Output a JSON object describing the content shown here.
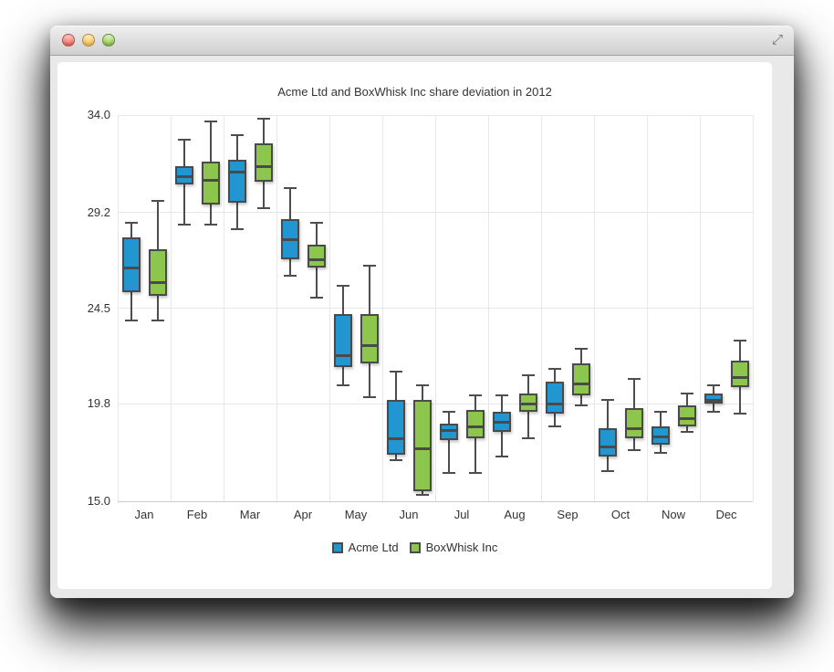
{
  "window": {
    "controls": [
      {
        "name": "close",
        "color": "#ed675e"
      },
      {
        "name": "minimize",
        "color": "#f5bf4f"
      },
      {
        "name": "zoom",
        "color": "#87c348"
      }
    ],
    "resize_icon_glyph": "⤢"
  },
  "chart_data": {
    "type": "boxplot",
    "title": "Acme Ltd and BoxWhisk Inc share deviation in 2012",
    "categories": [
      "Jan",
      "Feb",
      "Mar",
      "Apr",
      "May",
      "Jun",
      "Jul",
      "Aug",
      "Sep",
      "Oct",
      "Now",
      "Dec"
    ],
    "y_ticks": [
      "34.0",
      "29.2",
      "24.5",
      "19.8",
      "15.0"
    ],
    "ylim": [
      15.0,
      34.0
    ],
    "grid": true,
    "legend_position": "bottom",
    "point_format": [
      "low",
      "q1",
      "median",
      "q3",
      "high"
    ],
    "colors": {
      "stroke": "#4a4a4a",
      "gridline": "#e7e7e7",
      "axis_line": "#cccccc",
      "text": "#333333"
    },
    "series": [
      {
        "name": "Acme Ltd",
        "color": "#2196d0",
        "data": [
          [
            23.9,
            25.3,
            26.5,
            28.0,
            28.7
          ],
          [
            28.6,
            30.6,
            31.0,
            31.5,
            32.8
          ],
          [
            28.4,
            29.7,
            31.2,
            31.8,
            33.0
          ],
          [
            26.1,
            26.9,
            27.9,
            28.9,
            30.4
          ],
          [
            20.7,
            21.6,
            22.2,
            24.2,
            25.6
          ],
          [
            17.0,
            17.3,
            18.1,
            20.0,
            21.4
          ],
          [
            16.4,
            18.0,
            18.5,
            18.8,
            19.4
          ],
          [
            17.2,
            18.4,
            18.9,
            19.4,
            20.2
          ],
          [
            18.7,
            19.3,
            19.8,
            20.9,
            21.5
          ],
          [
            16.5,
            17.2,
            17.7,
            18.6,
            20.0
          ],
          [
            17.4,
            17.8,
            18.2,
            18.7,
            19.4
          ],
          [
            19.4,
            19.8,
            20.0,
            20.3,
            20.7
          ]
        ]
      },
      {
        "name": "BoxWhisk Inc",
        "color": "#8dc64d",
        "data": [
          [
            23.9,
            25.1,
            25.8,
            27.4,
            29.8
          ],
          [
            28.6,
            29.6,
            30.8,
            31.7,
            33.7
          ],
          [
            29.4,
            30.7,
            31.5,
            32.6,
            33.8
          ],
          [
            25.0,
            26.5,
            26.9,
            27.6,
            28.7
          ],
          [
            20.1,
            21.8,
            22.7,
            24.2,
            26.6
          ],
          [
            15.3,
            15.5,
            17.6,
            20.0,
            20.7
          ],
          [
            16.4,
            18.1,
            18.7,
            19.5,
            20.2
          ],
          [
            18.1,
            19.4,
            19.8,
            20.3,
            21.2
          ],
          [
            19.7,
            20.2,
            20.8,
            21.8,
            22.5
          ],
          [
            17.5,
            18.1,
            18.6,
            19.6,
            21.0
          ],
          [
            18.4,
            18.7,
            19.1,
            19.7,
            20.3
          ],
          [
            19.3,
            20.6,
            21.1,
            21.9,
            22.9
          ]
        ]
      }
    ]
  }
}
